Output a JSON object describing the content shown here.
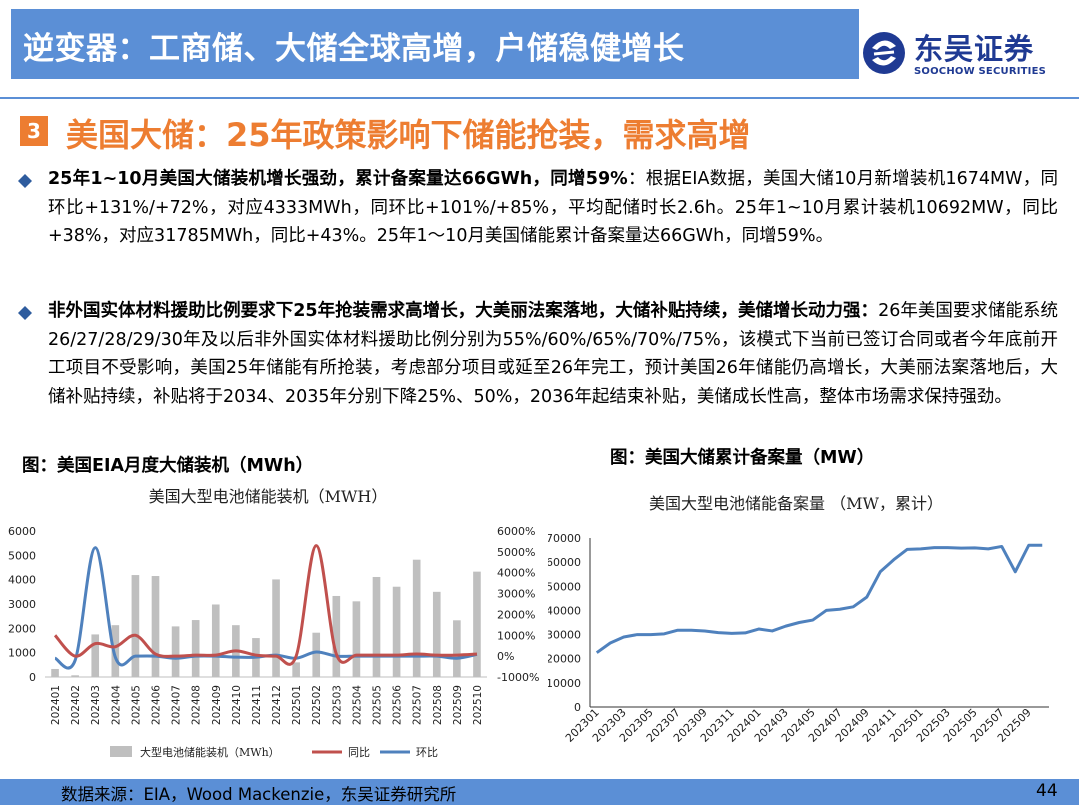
{
  "header": {
    "title": "逆变器：工商储、大储全球高增，户储稳健增长",
    "logo_cn": "东吴证券",
    "logo_en": "SOOCHOW SECURITIES"
  },
  "section": {
    "number": "3",
    "title": "美国大储：25年政策影响下储能抢装，需求高增"
  },
  "paragraphs": [
    {
      "lead": "25年1~10月美国大储装机增长强劲，累计备案量达66GWh，同增59%",
      "body": "：根据EIA数据，美国大储10月新增装机1674MW，同环比+131%/+72%，对应4333MWh，同环比+101%/+85%，平均配储时长2.6h。25年1~10月累计装机10692MW，同比+38%，对应31785MWh，同比+43%。25年1～10月美国储能累计备案量达66GWh，同增59%。"
    },
    {
      "lead": "非外国实体材料援助比例要求下25年抢装需求高增长，大美丽法案落地，大储补贴持续，美储增长动力强：",
      "body": "26年美国要求储能系统26/27/28/29/30年及以后非外国实体材料援助比例分别为55%/60%/65%/70%/75%，该模式下当前已签订合同或者今年底前开工项目不受影响，美国25年储能有所抢装，考虑部分项目或延至26年完工，预计美国26年储能仍高增长，大美丽法案落地后，大储补贴持续，补贴将于2034、2035年分别下降25%、50%，2036年起结束补贴，美储成长性高，整体市场需求保持强劲。"
    }
  ],
  "figure_captions": [
    "图：美国EIA月度大储装机（MWh）",
    "图：美国大储累计备案量（MW）"
  ],
  "chart_data": [
    {
      "type": "bar",
      "title": "美国大型电池储能装机（MWH）",
      "categories": [
        "202401",
        "202402",
        "202403",
        "202404",
        "202405",
        "202406",
        "202407",
        "202408",
        "202409",
        "202410",
        "202411",
        "202412",
        "202501",
        "202502",
        "202503",
        "202504",
        "202505",
        "202506",
        "202507",
        "202508",
        "202509",
        "202510"
      ],
      "series": [
        {
          "name": "大型电池储能装机（MWh）",
          "kind": "bar",
          "axis": "left",
          "color": "#bfbfbf",
          "values": [
            330,
            70,
            1750,
            2130,
            4190,
            4150,
            2080,
            2340,
            2980,
            2130,
            1600,
            4010,
            600,
            1820,
            3330,
            3110,
            4110,
            3710,
            4820,
            3500,
            2330,
            4330
          ]
        },
        {
          "name": "同比",
          "kind": "line",
          "axis": "right",
          "color": "#c0504d",
          "values": [
            1000,
            0,
            600,
            450,
            1000,
            100,
            0,
            50,
            50,
            250,
            50,
            0,
            0,
            5300,
            100,
            50,
            50,
            50,
            100,
            50,
            50,
            101
          ]
        },
        {
          "name": "环比",
          "kind": "line",
          "axis": "right",
          "color": "#4f81bd",
          "values": [
            -100,
            -200,
            5200,
            -50,
            0,
            0,
            -100,
            0,
            0,
            -50,
            -50,
            50,
            -100,
            200,
            0,
            0,
            0,
            0,
            0,
            0,
            -100,
            85
          ]
        }
      ],
      "ylim_left": [
        0,
        6000
      ],
      "yticks_left": [
        "0",
        "1000",
        "2000",
        "3000",
        "4000",
        "5000",
        "6000"
      ],
      "ylim_right": [
        -1000,
        6000
      ],
      "yticks_right": [
        "-1000%",
        "0%",
        "1000%",
        "2000%",
        "3000%",
        "4000%",
        "5000%",
        "6000%"
      ],
      "legend": "bottom"
    },
    {
      "type": "line",
      "title": "美国大型电池储能备案量 （MW，累计）",
      "x": [
        "202301",
        "202302",
        "202303",
        "202304",
        "202305",
        "202306",
        "202307",
        "202308",
        "202309",
        "202310",
        "202311",
        "202312",
        "202401",
        "202402",
        "202403",
        "202404",
        "202405",
        "202406",
        "202407",
        "202408",
        "202409",
        "202410",
        "202411",
        "202412",
        "202501",
        "202502",
        "202503",
        "202504",
        "202505",
        "202506",
        "202507",
        "202508",
        "202509",
        "202510"
      ],
      "xtick_labels": [
        "202301",
        "202303",
        "202305",
        "202307",
        "202309",
        "202311",
        "202401",
        "202403",
        "202405",
        "202407",
        "202409",
        "202411",
        "202501",
        "202503",
        "202505",
        "202507",
        "202509"
      ],
      "series": [
        {
          "name": "",
          "color": "#4f81bd",
          "values": [
            22500,
            26500,
            29000,
            30000,
            30000,
            30300,
            31800,
            31800,
            31500,
            30800,
            30500,
            30700,
            32300,
            31500,
            33500,
            35000,
            36000,
            40000,
            40500,
            41500,
            45500,
            56000,
            61000,
            65300,
            65500,
            66000,
            66000,
            65800,
            65900,
            65500,
            66500,
            56000,
            67000,
            67000
          ]
        }
      ],
      "ylim": [
        0,
        70000
      ],
      "yticks": [
        "0",
        "10000",
        "20000",
        "30000",
        "40000",
        "50000",
        "60000",
        "70000"
      ]
    }
  ],
  "footer": {
    "source": "数据来源：EIA，Wood Mackenzie，东吴证券研究所",
    "page": "44"
  },
  "colors": {
    "accent_blue": "#5b8fd6",
    "accent_orange": "#ed7d31",
    "logo_blue": "#1f3a93"
  }
}
